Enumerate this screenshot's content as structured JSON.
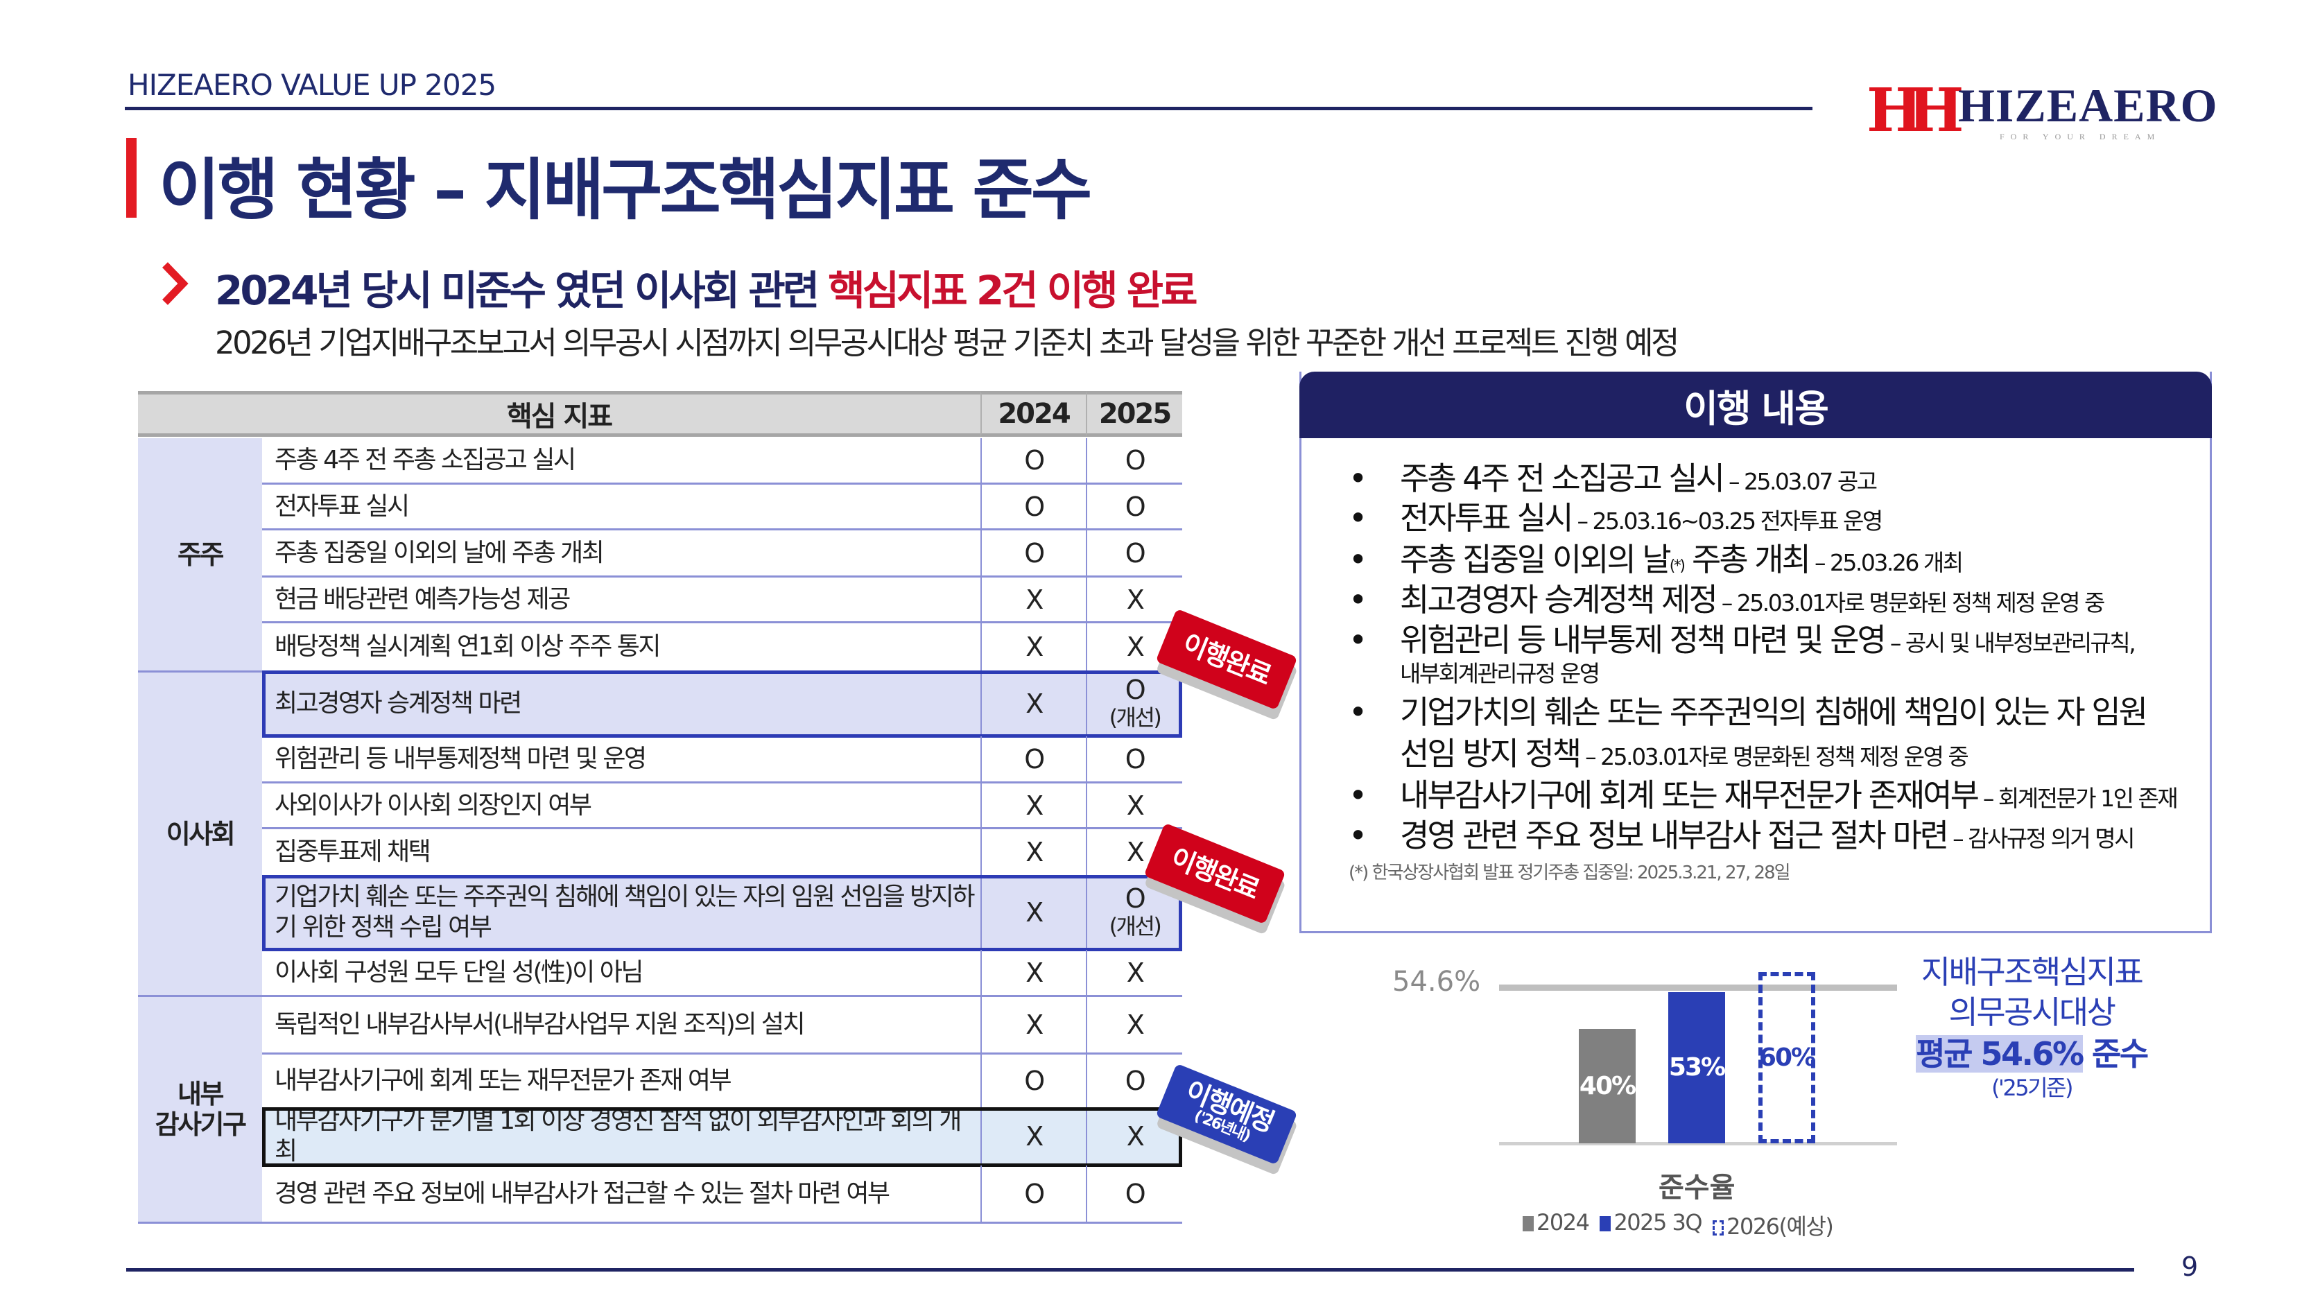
{
  "header": {
    "doc_title": "HIZEAERO VALUE UP 2025",
    "logo_name": "HIZEAERO",
    "logo_tagline": "FOR YOUR DREAM",
    "logo_mark": "HH"
  },
  "title": "이행 현황 – 지배구조핵심지표 준수",
  "subtitle": {
    "headline_main": "2024년 당시 미준수 였던 이사회 관련 ",
    "headline_highlight": "핵심지표 2건 이행 완료",
    "description": "2026년 기업지배구조보고서 의무공시 시점까지 의무공시대상 평균 기준치 초과 달성을 위한 꾸준한 개선 프로젝트 진행 예정"
  },
  "table": {
    "headers": {
      "indicator": "핵심 지표",
      "y2024": "2024",
      "y2025": "2025"
    },
    "groups": [
      {
        "label": "주주",
        "rows": [
          {
            "item": "주총 4주 전 주총 소집공고 실시",
            "y2024": "O",
            "y2025": "O"
          },
          {
            "item": "전자투표 실시",
            "y2024": "O",
            "y2025": "O"
          },
          {
            "item": "주총 집중일 이외의 날에 주총 개최",
            "y2024": "O",
            "y2025": "O"
          },
          {
            "item": "현금 배당관련 예측가능성 제공",
            "y2024": "X",
            "y2025": "X"
          },
          {
            "item": "배당정책 실시계획 연1회 이상 주주 통지",
            "y2024": "X",
            "y2025": "X"
          }
        ]
      },
      {
        "label": "이사회",
        "rows": [
          {
            "item": "최고경영자 승계정책 마련",
            "y2024": "X",
            "y2025": "O",
            "y2025_note": "(개선)",
            "highlight": "blue"
          },
          {
            "item": "위험관리 등 내부통제정책 마련 및 운영",
            "y2024": "O",
            "y2025": "O"
          },
          {
            "item": "사외이사가 이사회 의장인지 여부",
            "y2024": "X",
            "y2025": "X"
          },
          {
            "item": "집중투표제 채택",
            "y2024": "X",
            "y2025": "X"
          },
          {
            "item": "기업가치 훼손 또는 주주권익 침해에 책임이 있는 자의 임원 선임을 방지하기 위한 정책 수립 여부",
            "y2024": "X",
            "y2025": "O",
            "y2025_note": "(개선)",
            "highlight": "blue"
          },
          {
            "item": "이사회 구성원 모두 단일 성(性)이 아님",
            "y2024": "X",
            "y2025": "X"
          }
        ]
      },
      {
        "label": "내부\n감사기구",
        "rows": [
          {
            "item": "독립적인 내부감사부서(내부감사업무 지원 조직)의 설치",
            "y2024": "X",
            "y2025": "X"
          },
          {
            "item": "내부감사기구에 회계 또는 재무전문가 존재 여부",
            "y2024": "O",
            "y2025": "O"
          },
          {
            "item": "내부감사기구가 분기별 1회 이상 경영진 참석 없이 외부감사인과 회의 개최",
            "y2024": "X",
            "y2025": "X",
            "highlight": "black"
          },
          {
            "item": "경영 관련 주요 정보에 내부감사가 접근할 수 있는 절차 마련 여부",
            "y2024": "O",
            "y2025": "O"
          }
        ]
      }
    ],
    "stamps": [
      {
        "label": "이행완료",
        "sub": ""
      },
      {
        "label": "이행완료",
        "sub": ""
      },
      {
        "label": "이행예정",
        "sub": "('26년내)"
      }
    ]
  },
  "panel": {
    "title": "이행 내용",
    "bullets": [
      {
        "main": "주총 4주 전 소집공고 실시",
        "detail": " – 25.03.07 공고"
      },
      {
        "main": "전자투표 실시",
        "detail": " – 25.03.16~03.25 전자투표 운영"
      },
      {
        "main": "주총 집중일 이외의 날",
        "mark": "(*)",
        "main2": " 주총 개최",
        "detail": " – 25.03.26 개최"
      },
      {
        "main": "최고경영자 승계정책 제정",
        "detail": " – 25.03.01자로 명문화된 정책 제정 운영 중"
      },
      {
        "main": "위험관리 등 내부통제 정책 마련 및 운영",
        "detail": " – 공시 및 내부정보관리규칙,",
        "detail2": "내부회계관리규정 운영"
      },
      {
        "main": "기업가치의 훼손 또는 주주권익의 침해에 책임이 있는 자 임원",
        "main_line2": "선임 방지 정책",
        "detail": " – 25.03.01자로 명문화된 정책 제정 운영 중"
      },
      {
        "main": "내부감사기구에 회계 또는 재무전문가 존재여부",
        "detail": " – 회계전문가 1인 존재"
      },
      {
        "main": "경영 관련 주요 정보 내부감사 접근 절차 마련",
        "detail": " – 감사규정 의거 명시"
      }
    ],
    "footnote": "(*) 한국상장사협회 발표 정기주총 집중일: 2025.3.21, 27, 28일"
  },
  "chart_data": {
    "type": "bar",
    "title": "",
    "xlabel": "준수율",
    "categories": [
      "2024",
      "2025 3Q",
      "2026(예상)"
    ],
    "values": [
      40,
      53,
      60
    ],
    "value_labels": [
      "40%",
      "53%",
      "60%"
    ],
    "reference_line": {
      "value": 54.6,
      "label": "54.6%"
    },
    "legend": [
      "2024",
      "2025 3Q",
      "2026(예상)"
    ],
    "legend_position": "bottom",
    "colors": [
      "#808080",
      "#2a3fb5",
      "#2a3fb5"
    ],
    "ylim": [
      0,
      60
    ]
  },
  "side_note": {
    "line1": "지배구조핵심지표",
    "line2": "의무공시대상",
    "highlight": "평균 54.6%",
    "suffix": " 준수",
    "basis": "('25기준)"
  },
  "page_number": "9"
}
